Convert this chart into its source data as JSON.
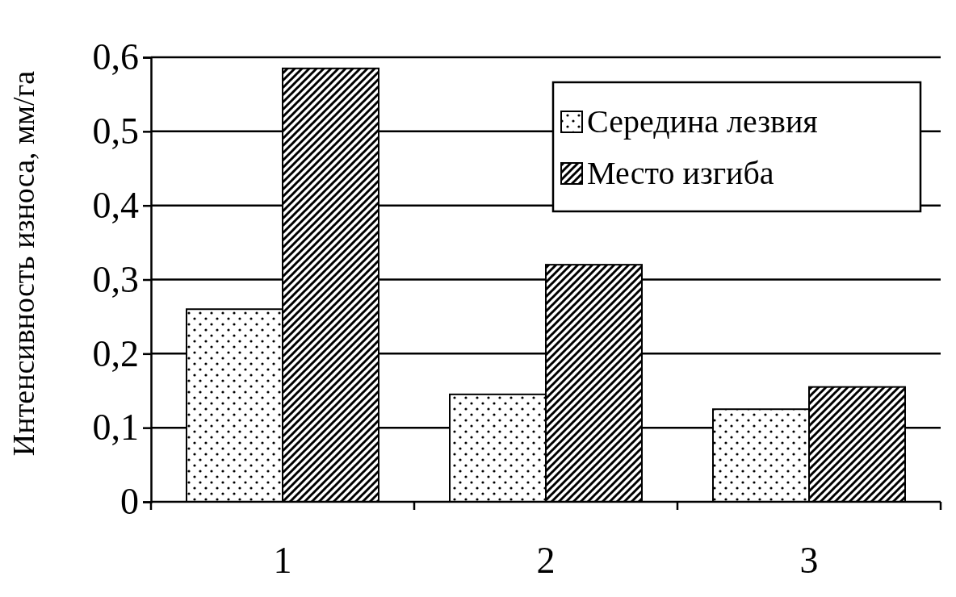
{
  "chart_data": {
    "type": "bar",
    "ylabel": "Интенсивность износа, мм/га",
    "categories": [
      "1",
      "2",
      "3"
    ],
    "series": [
      {
        "name": "Середина лезвия",
        "color": "#000000",
        "values": [
          0.26,
          0.145,
          0.125
        ]
      },
      {
        "name": "Место изгиба",
        "color": "#000000",
        "values": [
          0.585,
          0.32,
          0.155
        ]
      }
    ],
    "ylim": [
      0,
      0.6
    ],
    "yticks": [
      {
        "value": 0,
        "label": "0"
      },
      {
        "value": 0.1,
        "label": "0,1"
      },
      {
        "value": 0.2,
        "label": "0,2"
      },
      {
        "value": 0.3,
        "label": "0,3"
      },
      {
        "value": 0.4,
        "label": "0,4"
      },
      {
        "value": 0.5,
        "label": "0,5"
      },
      {
        "value": 0.6,
        "label": "0,6"
      }
    ],
    "grid": "y",
    "legend": "top right"
  }
}
